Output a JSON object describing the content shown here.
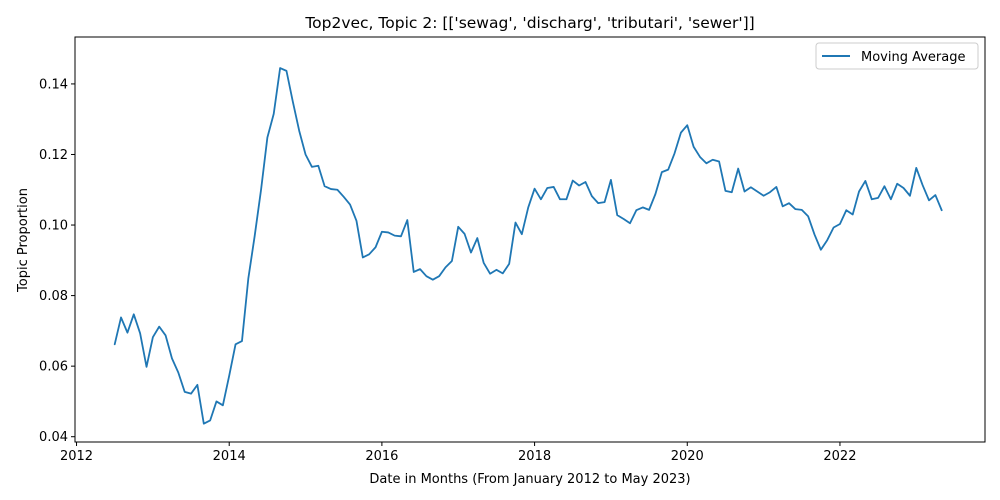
{
  "chart_data": {
    "type": "line",
    "title": "Top2vec, Topic 2: [['sewag', 'discharg', 'tributari', 'sewer']]",
    "xlabel": "Date in Months (From January 2012 to May 2023)",
    "ylabel": "Topic Proportion",
    "xlim": [
      2011.98,
      2023.9
    ],
    "ylim": [
      0.0385,
      0.1533
    ],
    "xticks": [
      2012,
      2014,
      2016,
      2018,
      2020,
      2022
    ],
    "xtick_labels": [
      "2012",
      "2014",
      "2016",
      "2018",
      "2020",
      "2022"
    ],
    "yticks": [
      0.04,
      0.06,
      0.08,
      0.1,
      0.12,
      0.14
    ],
    "ytick_labels": [
      "0.04",
      "0.06",
      "0.08",
      "0.10",
      "0.12",
      "0.14"
    ],
    "grid": false,
    "legend": {
      "position": "top-right",
      "entries": [
        "Moving Average"
      ]
    },
    "series": [
      {
        "name": "Moving Average",
        "color": "#1f77b4",
        "x": [
          2012.5,
          2012.583,
          2012.667,
          2012.75,
          2012.833,
          2012.917,
          2013.0,
          2013.083,
          2013.167,
          2013.25,
          2013.333,
          2013.417,
          2013.5,
          2013.583,
          2013.667,
          2013.75,
          2013.833,
          2013.917,
          2014.0,
          2014.083,
          2014.167,
          2014.25,
          2014.333,
          2014.417,
          2014.5,
          2014.583,
          2014.667,
          2014.75,
          2014.833,
          2014.917,
          2015.0,
          2015.083,
          2015.167,
          2015.25,
          2015.333,
          2015.417,
          2015.5,
          2015.583,
          2015.667,
          2015.75,
          2015.833,
          2015.917,
          2016.0,
          2016.083,
          2016.167,
          2016.25,
          2016.333,
          2016.417,
          2016.5,
          2016.583,
          2016.667,
          2016.75,
          2016.833,
          2016.917,
          2017.0,
          2017.083,
          2017.167,
          2017.25,
          2017.333,
          2017.417,
          2017.5,
          2017.583,
          2017.667,
          2017.75,
          2017.833,
          2017.917,
          2018.0,
          2018.083,
          2018.167,
          2018.25,
          2018.333,
          2018.417,
          2018.5,
          2018.583,
          2018.667,
          2018.75,
          2018.833,
          2018.917,
          2019.0,
          2019.083,
          2019.167,
          2019.25,
          2019.333,
          2019.417,
          2019.5,
          2019.583,
          2019.667,
          2019.75,
          2019.833,
          2019.917,
          2020.0,
          2020.083,
          2020.167,
          2020.25,
          2020.333,
          2020.417,
          2020.5,
          2020.583,
          2020.667,
          2020.75,
          2020.833,
          2020.917,
          2021.0,
          2021.083,
          2021.167,
          2021.25,
          2021.333,
          2021.417,
          2021.5,
          2021.583,
          2021.667,
          2021.75,
          2021.833,
          2021.917,
          2022.0,
          2022.083,
          2022.167,
          2022.25,
          2022.333,
          2022.417,
          2022.5,
          2022.583,
          2022.667,
          2022.75,
          2022.833,
          2022.917,
          2023.0,
          2023.083,
          2023.167,
          2023.25,
          2023.333
        ],
        "values": [
          0.0662,
          0.0738,
          0.0695,
          0.0747,
          0.0693,
          0.0598,
          0.0682,
          0.0712,
          0.0687,
          0.0622,
          0.0582,
          0.0527,
          0.0522,
          0.0547,
          0.0437,
          0.0446,
          0.05,
          0.0489,
          0.0573,
          0.0662,
          0.0671,
          0.0848,
          0.0968,
          0.11,
          0.1248,
          0.1315,
          0.1445,
          0.1437,
          0.135,
          0.1267,
          0.12,
          0.1165,
          0.1168,
          0.111,
          0.1102,
          0.11,
          0.108,
          0.1058,
          0.1012,
          0.0908,
          0.0917,
          0.0937,
          0.0981,
          0.0979,
          0.097,
          0.0968,
          0.1014,
          0.0867,
          0.0875,
          0.0855,
          0.0845,
          0.0855,
          0.088,
          0.0898,
          0.0995,
          0.0975,
          0.0922,
          0.0963,
          0.0893,
          0.0862,
          0.0873,
          0.0863,
          0.089,
          0.1007,
          0.0974,
          0.105,
          0.1103,
          0.1073,
          0.1105,
          0.1108,
          0.1073,
          0.1073,
          0.1126,
          0.1112,
          0.1122,
          0.1082,
          0.1062,
          0.1065,
          0.1128,
          0.1028,
          0.1017,
          0.1005,
          0.1042,
          0.105,
          0.1043,
          0.1088,
          0.115,
          0.1157,
          0.1203,
          0.1262,
          0.1283,
          0.1222,
          0.1193,
          0.1175,
          0.1185,
          0.118,
          0.1097,
          0.1093,
          0.116,
          0.1095,
          0.1107,
          0.1095,
          0.1083,
          0.1093,
          0.1108,
          0.1053,
          0.1062,
          0.1045,
          0.1043,
          0.1025,
          0.0973,
          0.093,
          0.0957,
          0.0993,
          0.1003,
          0.1042,
          0.103,
          0.1095,
          0.1125,
          0.1073,
          0.1077,
          0.111,
          0.1073,
          0.1117,
          0.1105,
          0.1083,
          0.1162,
          0.1113,
          0.107,
          0.1085,
          0.1042
        ]
      }
    ]
  }
}
